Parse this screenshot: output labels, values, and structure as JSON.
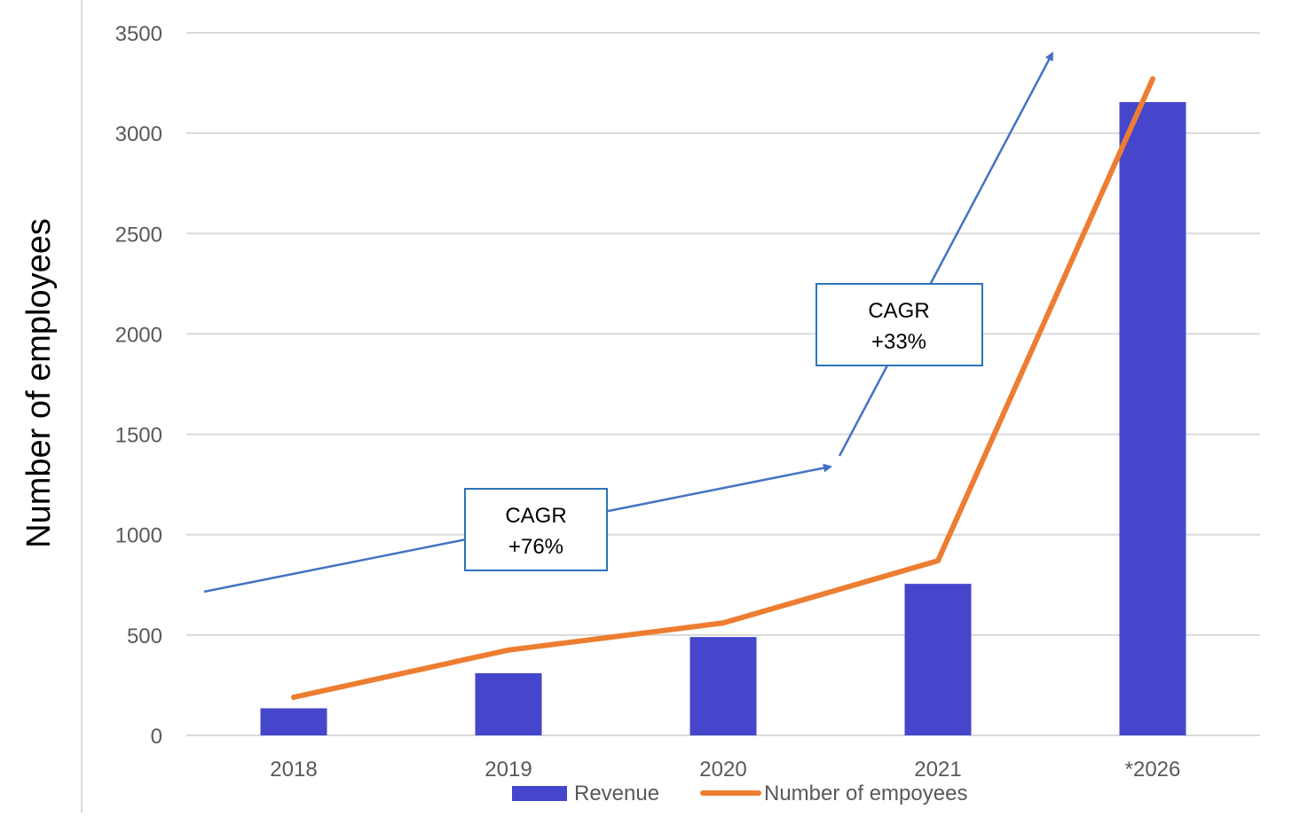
{
  "chart_data": {
    "type": "bar",
    "categories": [
      "2018",
      "2019",
      "2020",
      "2021",
      "*2026"
    ],
    "series": [
      {
        "name": "Revenue",
        "type": "bar",
        "values": [
          135,
          310,
          490,
          755,
          3155
        ]
      },
      {
        "name": "Number of empoyees",
        "type": "line",
        "values": [
          190,
          425,
          560,
          870,
          3270
        ]
      }
    ],
    "ylabel": "Number of employees",
    "xlabel": "",
    "ylim": [
      0,
      3500
    ],
    "yticks": [
      0,
      500,
      1000,
      1500,
      2000,
      2500,
      3000,
      3500
    ],
    "grid": true,
    "legend_position": "bottom",
    "annotations": [
      {
        "line1": "CAGR",
        "line2": "+76%"
      },
      {
        "line1": "CAGR",
        "line2": "+33%"
      }
    ],
    "colors": {
      "bar": "#4646CC",
      "line": "#ED7D31",
      "arrow": "#4472C4",
      "grid": "#D9D9D9",
      "text": "#595959"
    }
  }
}
